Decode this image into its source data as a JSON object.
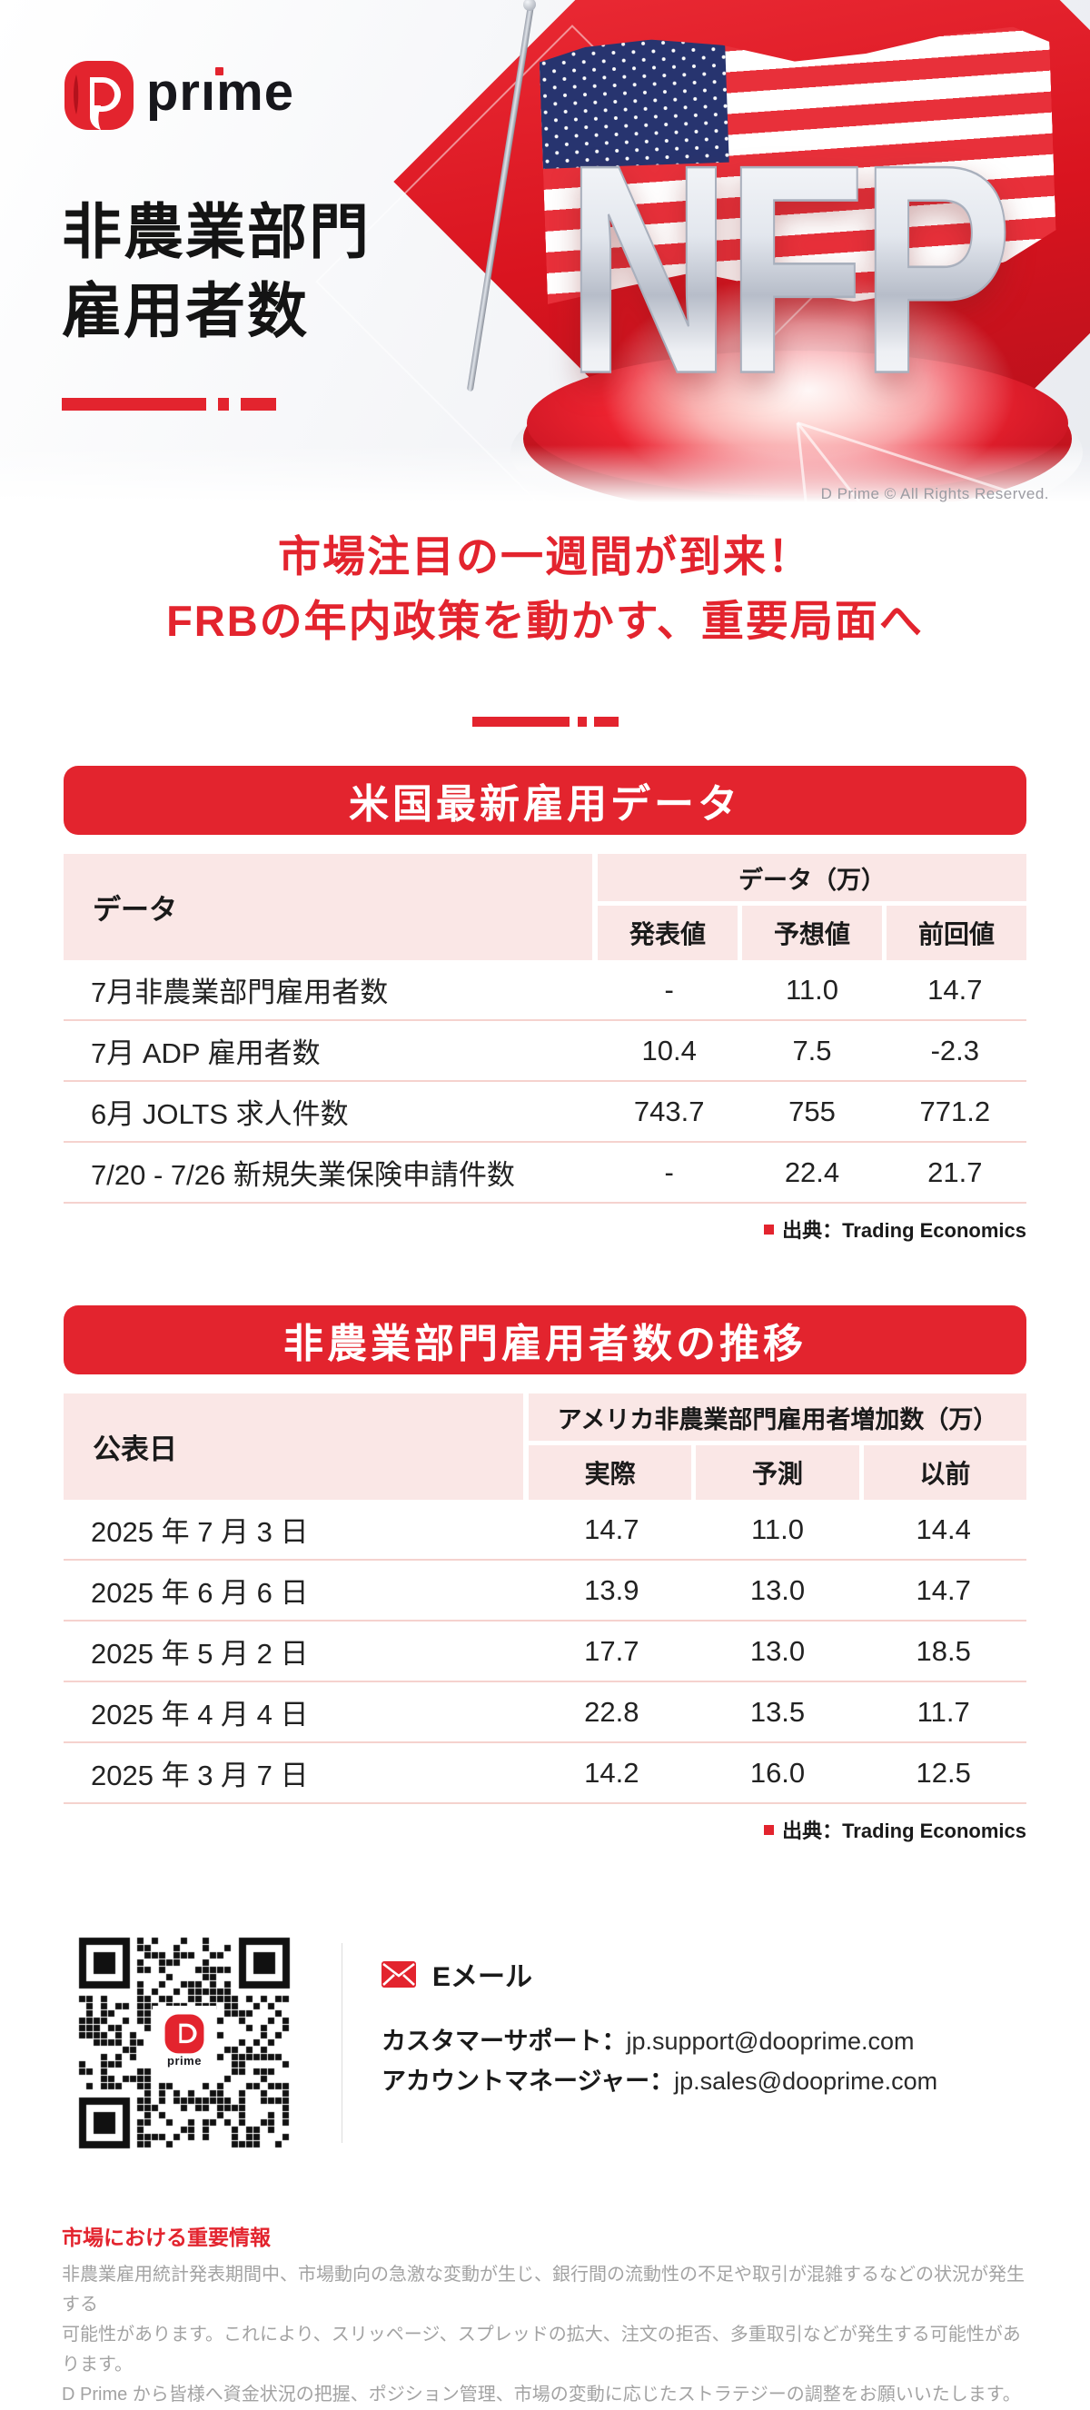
{
  "brand": {
    "logo_pr": "pr",
    "logo_i": "ı",
    "logo_me": "me",
    "logo_text": "prime",
    "logo_d": "D",
    "copyright": "D Prime © All Rights Reserved."
  },
  "hero": {
    "title_line1": "非農業部門",
    "title_line2": "雇用者数",
    "nfp_text": "NFP"
  },
  "headline": {
    "line1": "市場注目の一週間が到来！",
    "line2": "FRBの年内政策を動かす、重要局面へ"
  },
  "table1": {
    "section_title": "米国最新雇用データ",
    "row_header_label": "データ",
    "col_group_label": "データ（万）",
    "columns": [
      "発表値",
      "予想値",
      "前回値"
    ],
    "rows": [
      {
        "label": "7月非農業部門雇用者数",
        "values": [
          "-",
          "11.0",
          "14.7"
        ]
      },
      {
        "label": "7月 ADP 雇用者数",
        "values": [
          "10.4",
          "7.5",
          "-2.3"
        ]
      },
      {
        "label": "6月 JOLTS 求人件数",
        "values": [
          "743.7",
          "755",
          "771.2"
        ]
      },
      {
        "label": "7/20 - 7/26 新規失業保険申請件数",
        "values": [
          "-",
          "22.4",
          "21.7"
        ]
      }
    ],
    "source": "出典：Trading Economics"
  },
  "table2": {
    "section_title": "非農業部門雇用者数の推移",
    "row_header_label": "公表日",
    "col_group_label": "アメリカ非農業部門雇用者増加数（万）",
    "columns": [
      "実際",
      "予測",
      "以前"
    ],
    "rows": [
      {
        "label": "2025 年 7 月 3 日",
        "values": [
          "14.7",
          "11.0",
          "14.4"
        ]
      },
      {
        "label": "2025 年 6 月 6 日",
        "values": [
          "13.9",
          "13.0",
          "14.7"
        ]
      },
      {
        "label": "2025 年 5 月 2 日",
        "values": [
          "17.7",
          "13.0",
          "18.5"
        ]
      },
      {
        "label": "2025 年 4 月 4 日",
        "values": [
          "22.8",
          "13.5",
          "11.7"
        ]
      },
      {
        "label": "2025 年 3 月 7 日",
        "values": [
          "14.2",
          "16.0",
          "12.5"
        ]
      }
    ],
    "source": "出典：Trading Economics"
  },
  "contact": {
    "email_heading": "Eメール",
    "support_label": "カスタマーサポート：",
    "support_email": "jp.support@dooprime.com",
    "manager_label": "アカウントマネージャー：",
    "manager_email": "jp.sales@dooprime.com"
  },
  "footer": {
    "title": "市場における重要情報",
    "body": "非農業雇用統計発表期間中、市場動向の急激な変動が生じ、銀行間の流動性の不足や取引が混雑するなどの状況が発生する\n可能性があります。これにより、スリッページ、スプレッドの拡大、注文の拒否、多重取引などが発生する可能性があります。\nD Prime から皆様へ資金状況の把握、ポジション管理、市場の変動に応じたストラテジーの調整をお願いいたします。"
  },
  "colors": {
    "brand_red": "#e3242e",
    "table_header_pink": "#fae7e6",
    "row_divider_pink": "#f5d2ce",
    "footer_gray": "#a3a3a3",
    "flag_blue": "#27346f"
  }
}
